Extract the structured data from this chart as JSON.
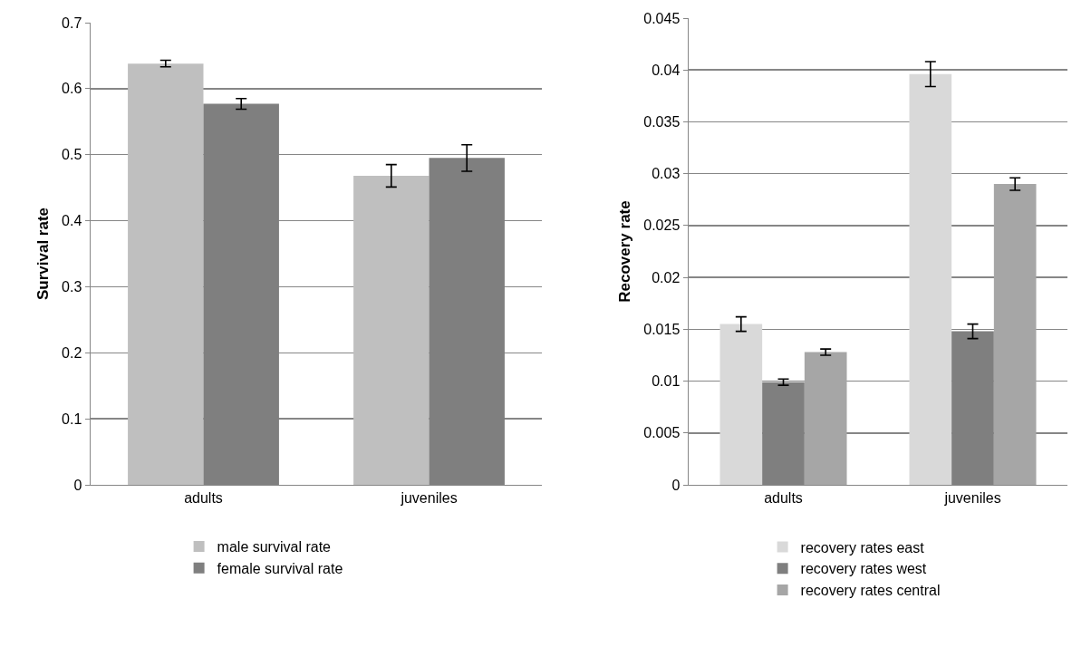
{
  "chart_data": [
    {
      "type": "bar",
      "ylabel": "Survival rate",
      "categories": [
        "adults",
        "juveniles"
      ],
      "series": [
        {
          "name": "male survival rate",
          "color": "#bfbfbf",
          "values": [
            0.638,
            0.468
          ],
          "errors": [
            0.005,
            0.017
          ]
        },
        {
          "name": "female survival rate",
          "color": "#7f7f7f",
          "values": [
            0.577,
            0.495
          ],
          "errors": [
            0.008,
            0.02
          ]
        }
      ],
      "ylim": [
        0,
        0.7
      ],
      "yticks": [
        0,
        0.1,
        0.2,
        0.3,
        0.4,
        0.5,
        0.6,
        0.7
      ],
      "grid": "y",
      "legend": "bottom"
    },
    {
      "type": "bar",
      "ylabel": "Recovery rate",
      "categories": [
        "adults",
        "juveniles"
      ],
      "series": [
        {
          "name": "recovery rates east",
          "color": "#d9d9d9",
          "values": [
            0.0155,
            0.0396
          ],
          "errors": [
            0.0007,
            0.0012
          ]
        },
        {
          "name": "recovery rates west",
          "color": "#7f7f7f",
          "values": [
            0.0099,
            0.0148
          ],
          "errors": [
            0.0003,
            0.0007
          ]
        },
        {
          "name": "recovery rates central",
          "color": "#a6a6a6",
          "values": [
            0.0128,
            0.029
          ],
          "errors": [
            0.0003,
            0.0006
          ]
        }
      ],
      "ylim": [
        0,
        0.045
      ],
      "yticks": [
        0,
        0.005,
        0.01,
        0.015,
        0.02,
        0.025,
        0.03,
        0.035,
        0.04,
        0.045
      ],
      "grid": "y",
      "legend": "bottom"
    }
  ]
}
